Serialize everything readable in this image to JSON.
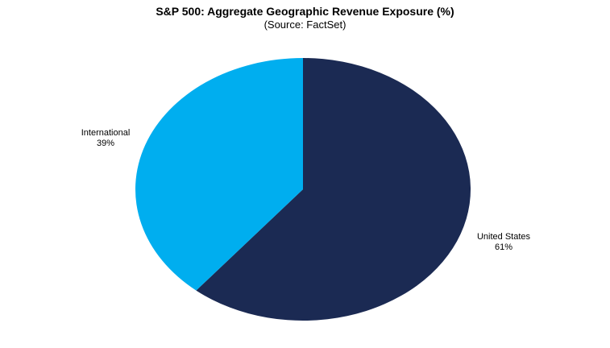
{
  "chart_data": {
    "type": "pie",
    "title": "S&P 500: Aggregate Geographic Revenue Exposure (%)",
    "subtitle": "(Source: FactSet)",
    "slices": [
      {
        "label": "United States",
        "value": 61,
        "value_label": "61%",
        "color": "#1b2a53"
      },
      {
        "label": "International",
        "value": 39,
        "value_label": "39%",
        "color": "#00aeef"
      }
    ],
    "start": "12 o'clock",
    "direction": "clockwise",
    "legend": "none"
  }
}
